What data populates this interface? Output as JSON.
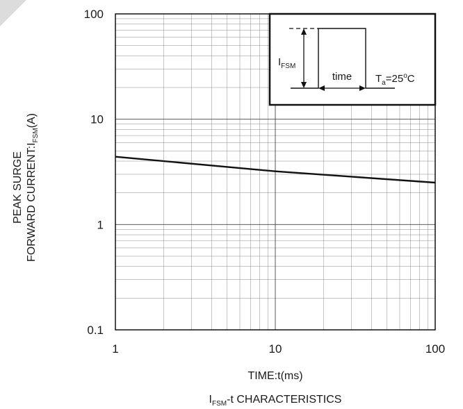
{
  "chart_data": {
    "type": "line",
    "title": "",
    "caption": {
      "main": "I",
      "sub": "FSM",
      "rest": "-t CHARACTERISTICS"
    },
    "xlabel": "TIME:t(ms)",
    "ylabel": {
      "line1": "PEAK SURGE",
      "line2_main": "FORWARD CURRENT:I",
      "line2_sub": "FSM",
      "line2_rest": "(A)"
    },
    "x_scale": "log",
    "y_scale": "log",
    "xlim": [
      1,
      100
    ],
    "ylim": [
      0.1,
      100
    ],
    "x_ticks": [
      {
        "value": 1,
        "label": "1"
      },
      {
        "value": 10,
        "label": "10"
      },
      {
        "value": 100,
        "label": "100"
      }
    ],
    "y_ticks": [
      {
        "value": 0.1,
        "label": "0.1"
      },
      {
        "value": 1,
        "label": "1"
      },
      {
        "value": 10,
        "label": "10"
      },
      {
        "value": 100,
        "label": "100"
      }
    ],
    "grid": true,
    "series": [
      {
        "x": [
          1,
          10,
          100
        ],
        "y": [
          4.4,
          3.2,
          2.5
        ]
      }
    ],
    "inset": {
      "legend_position": "top-right",
      "ifsm_label": {
        "main": "I",
        "sub": "FSM"
      },
      "time_label": "time",
      "temp_label": {
        "main": "T",
        "sub": "a",
        "value": "=25",
        "sup": "o",
        "unit": "C"
      }
    }
  }
}
